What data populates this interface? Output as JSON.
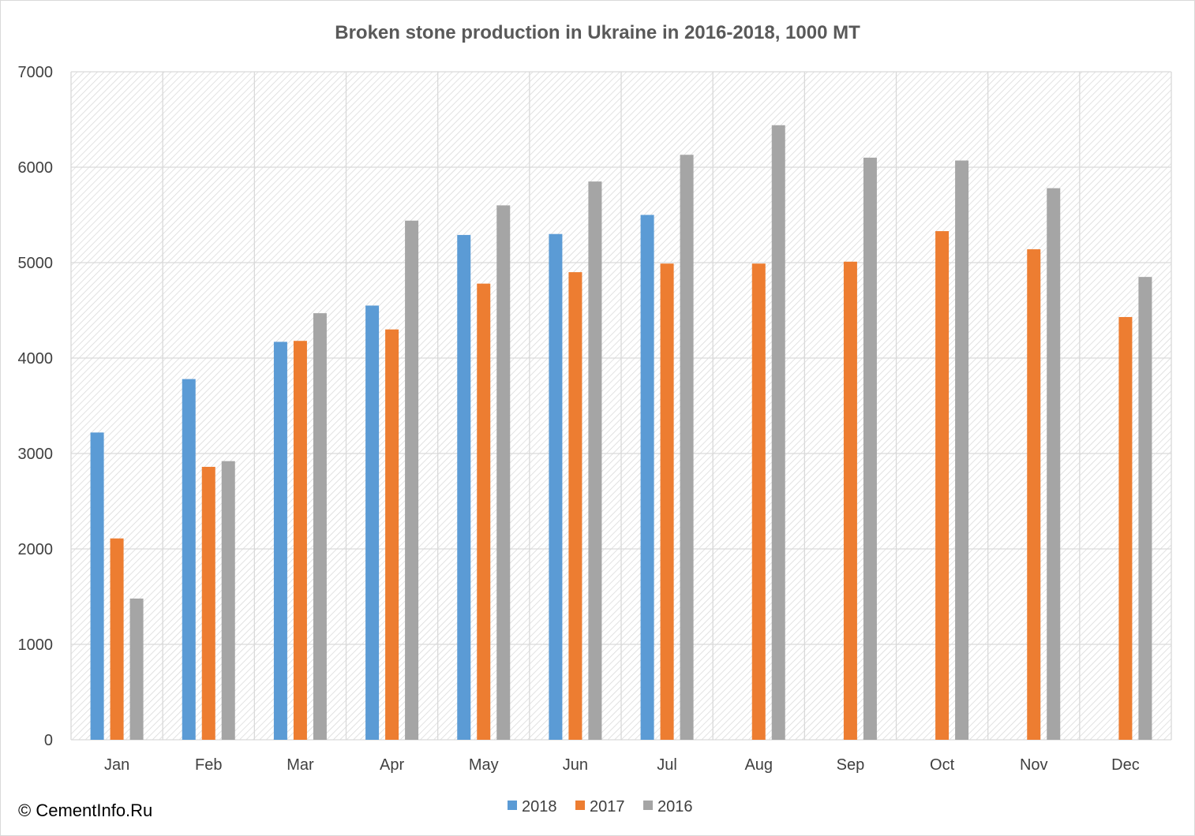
{
  "copyright": "© CementInfo.Ru",
  "colors": {
    "2018": "#5b9bd5",
    "2017": "#ed7d31",
    "2016": "#a5a5a5",
    "grid": "#d9d9d9",
    "hatch": "#d6d6d6"
  },
  "chart_data": {
    "type": "bar",
    "title": "Broken stone production in Ukraine in 2016-2018, 1000 MT",
    "xlabel": "",
    "ylabel": "",
    "ylim": [
      0,
      7000
    ],
    "yticks": [
      0,
      1000,
      2000,
      3000,
      4000,
      5000,
      6000,
      7000
    ],
    "grid": true,
    "legend_position": "bottom",
    "categories": [
      "Jan",
      "Feb",
      "Mar",
      "Apr",
      "May",
      "Jun",
      "Jul",
      "Aug",
      "Sep",
      "Oct",
      "Nov",
      "Dec"
    ],
    "series": [
      {
        "name": "2018",
        "values": [
          3220,
          3780,
          4170,
          4550,
          5290,
          5300,
          5500,
          null,
          null,
          null,
          null,
          null
        ]
      },
      {
        "name": "2017",
        "values": [
          2110,
          2860,
          4180,
          4300,
          4780,
          4900,
          4990,
          4990,
          5010,
          5330,
          5140,
          4430
        ]
      },
      {
        "name": "2016",
        "values": [
          1480,
          2920,
          4470,
          5440,
          5600,
          5850,
          6130,
          6440,
          6100,
          6070,
          5780,
          4850
        ]
      }
    ]
  }
}
